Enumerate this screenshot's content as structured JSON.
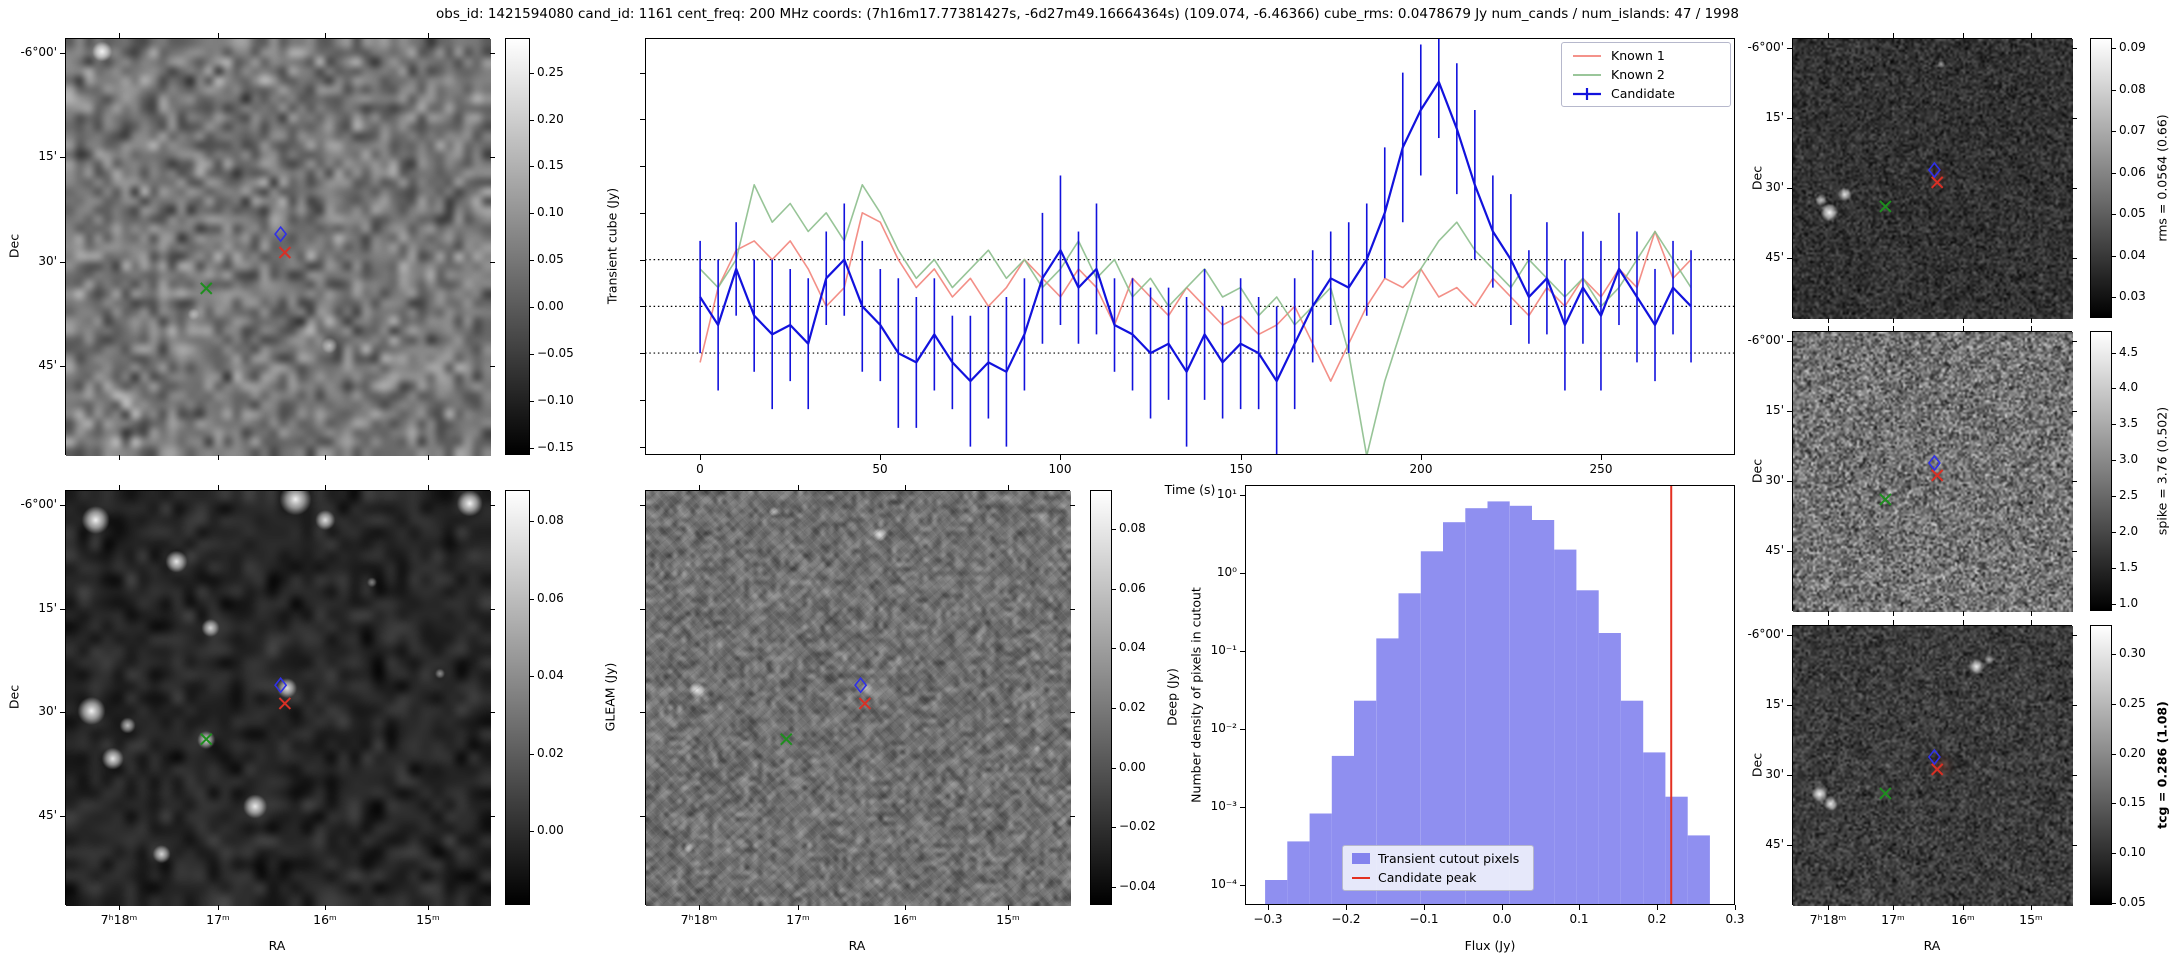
{
  "title": "obs_id: 1421594080 cand_id: 1161 cent_freq: 200 MHz coords: (7h16m17.77381427s, -6d27m49.16664364s) (109.074, -6.46366) cube_rms: 0.0478679 Jy num_cands / num_islands: 47 / 1998",
  "axes": {
    "dec_label": "Dec",
    "ra_label": "RA",
    "dec_ticks": [
      "-6°00'",
      "15'",
      "30'",
      "45'"
    ],
    "ra_ticks": [
      "7ʰ18ᵐ",
      "17ᵐ",
      "16ᵐ",
      "15ᵐ"
    ]
  },
  "marker_colors": {
    "candidate": "#3030e8",
    "peak": "#d83025",
    "known": "#1e8e1e"
  },
  "colorbars": {
    "transient": {
      "label": "",
      "vmin": -0.158,
      "vmax": 0.287,
      "tick_values": [
        0.25,
        0.2,
        0.15,
        0.1,
        0.05,
        0.0,
        -0.05,
        -0.1,
        -0.15
      ],
      "tick_labels": [
        "0.25",
        "0.20",
        "0.15",
        "0.10",
        "0.05",
        "0.00",
        "−0.05",
        "−0.10",
        "−0.15"
      ]
    },
    "gleam": {
      "label": "GLEAM (Jy)",
      "vmin": -0.019,
      "vmax": 0.088,
      "tick_values": [
        0.08,
        0.06,
        0.04,
        0.02,
        0.0
      ],
      "tick_labels": [
        "0.08",
        "0.06",
        "0.04",
        "0.02",
        "0.00"
      ]
    },
    "deep": {
      "label": "Deep (Jy)",
      "vmin": -0.046,
      "vmax": 0.093,
      "tick_values": [
        0.08,
        0.06,
        0.04,
        0.02,
        0.0,
        -0.02,
        -0.04
      ],
      "tick_labels": [
        "0.08",
        "0.06",
        "0.04",
        "0.02",
        "0.00",
        "−0.02",
        "−0.04"
      ]
    },
    "rms": {
      "label": "rms = 0.0564 (0.66)",
      "vmin": 0.025,
      "vmax": 0.0925,
      "tick_values": [
        0.09,
        0.08,
        0.07,
        0.06,
        0.05,
        0.04,
        0.03
      ],
      "tick_labels": [
        "0.09",
        "0.08",
        "0.07",
        "0.06",
        "0.05",
        "0.04",
        "0.03"
      ]
    },
    "spike": {
      "label": "spike = 3.76 (0.502)",
      "vmin": 0.9,
      "vmax": 4.8,
      "tick_values": [
        4.5,
        4.0,
        3.5,
        3.0,
        2.5,
        2.0,
        1.5,
        1.0
      ],
      "tick_labels": [
        "4.5",
        "4.0",
        "3.5",
        "3.0",
        "2.5",
        "2.0",
        "1.5",
        "1.0"
      ]
    },
    "tcg": {
      "label": "tcg = 0.286 (1.08)",
      "bold": true,
      "vmin": 0.048,
      "vmax": 0.329,
      "tick_values": [
        0.3,
        0.25,
        0.2,
        0.15,
        0.1,
        0.05
      ],
      "tick_labels": [
        "0.30",
        "0.25",
        "0.20",
        "0.15",
        "0.10",
        "0.05"
      ]
    }
  },
  "chart_data": [
    {
      "type": "line",
      "xlabel": "Time (s)",
      "ylabel": "Transient cube (Jy)",
      "xlim": [
        -15.3,
        287.2
      ],
      "ylim": [
        -0.159,
        0.287
      ],
      "xticks": [
        0,
        50,
        100,
        150,
        200,
        250
      ],
      "hlines": [
        0.05,
        0.0,
        -0.05
      ],
      "left_tick_values": [
        0.25,
        0.2,
        0.15,
        0.1,
        0.05,
        0.0,
        -0.05,
        -0.1,
        -0.15
      ],
      "x": [
        0,
        5,
        10,
        15,
        20,
        25,
        30,
        35,
        40,
        45,
        50,
        55,
        60,
        65,
        70,
        75,
        80,
        85,
        90,
        95,
        100,
        105,
        110,
        115,
        120,
        125,
        130,
        135,
        140,
        145,
        150,
        155,
        160,
        165,
        170,
        175,
        180,
        185,
        190,
        195,
        200,
        205,
        210,
        215,
        220,
        225,
        230,
        235,
        240,
        245,
        250,
        255,
        260,
        265,
        270,
        275
      ],
      "series": [
        {
          "name": "Known 1",
          "color": "#f2837a",
          "values": [
            -0.06,
            0.02,
            0.06,
            0.07,
            0.05,
            0.07,
            0.04,
            0.0,
            0.02,
            0.1,
            0.09,
            0.05,
            0.02,
            0.04,
            0.01,
            0.03,
            0.0,
            0.02,
            0.05,
            0.03,
            0.01,
            0.04,
            0.02,
            -0.02,
            0.03,
            0.01,
            -0.01,
            0.02,
            0.0,
            -0.02,
            -0.01,
            -0.03,
            -0.02,
            0.0,
            -0.04,
            -0.08,
            -0.04,
            0.0,
            0.03,
            0.02,
            0.04,
            0.01,
            0.02,
            0.0,
            0.03,
            0.01,
            -0.01,
            0.02,
            0.0,
            0.03,
            0.01,
            0.04,
            0.02,
            0.08,
            0.03,
            0.05
          ]
        },
        {
          "name": "Known 2",
          "color": "#8cbe8c",
          "values": [
            0.04,
            0.02,
            0.05,
            0.13,
            0.09,
            0.11,
            0.08,
            0.1,
            0.07,
            0.13,
            0.1,
            0.06,
            0.03,
            0.05,
            0.02,
            0.04,
            0.06,
            0.03,
            0.05,
            0.02,
            0.04,
            0.07,
            0.03,
            0.05,
            0.01,
            0.03,
            0.0,
            0.02,
            0.04,
            0.01,
            0.02,
            -0.01,
            0.01,
            -0.02,
            0.0,
            0.02,
            -0.05,
            -0.16,
            -0.08,
            -0.02,
            0.04,
            0.07,
            0.09,
            0.06,
            0.04,
            0.02,
            0.05,
            0.03,
            0.01,
            0.03,
            0.0,
            0.02,
            0.05,
            0.08,
            0.05,
            0.02
          ]
        },
        {
          "name": "Candidate",
          "color": "#1212dd",
          "values": [
            0.01,
            -0.02,
            0.04,
            -0.01,
            -0.03,
            -0.02,
            -0.04,
            0.03,
            0.05,
            0.0,
            -0.02,
            -0.05,
            -0.06,
            -0.03,
            -0.06,
            -0.08,
            -0.06,
            -0.07,
            -0.03,
            0.03,
            0.06,
            0.02,
            0.04,
            -0.02,
            -0.03,
            -0.05,
            -0.04,
            -0.07,
            -0.03,
            -0.06,
            -0.04,
            -0.05,
            -0.08,
            -0.04,
            0.0,
            0.03,
            0.02,
            0.05,
            0.1,
            0.17,
            0.21,
            0.24,
            0.19,
            0.13,
            0.08,
            0.05,
            0.01,
            0.03,
            -0.02,
            0.02,
            -0.01,
            0.04,
            0.01,
            -0.02,
            0.02,
            0.0
          ],
          "errors": [
            0.06,
            0.07,
            0.05,
            0.06,
            0.08,
            0.06,
            0.07,
            0.05,
            0.06,
            0.07,
            0.06,
            0.08,
            0.07,
            0.06,
            0.05,
            0.07,
            0.06,
            0.08,
            0.06,
            0.07,
            0.08,
            0.06,
            0.07,
            0.05,
            0.06,
            0.07,
            0.06,
            0.08,
            0.07,
            0.06,
            0.07,
            0.06,
            0.08,
            0.07,
            0.06,
            0.05,
            0.07,
            0.06,
            0.07,
            0.08,
            0.07,
            0.06,
            0.07,
            0.08,
            0.06,
            0.07,
            0.05,
            0.06,
            0.07,
            0.06,
            0.08,
            0.06,
            0.07,
            0.06,
            0.05,
            0.06
          ]
        }
      ],
      "legend_position": "upper right"
    },
    {
      "type": "bar",
      "xlabel": "Flux (Jy)",
      "ylabel": "Number density of pixels in cutout",
      "bin_start": -0.3042,
      "bin_width": 0.0286,
      "values": [
        0.000115,
        0.00036,
        0.00082,
        0.0045,
        0.023,
        0.145,
        0.55,
        1.9,
        4.5,
        6.8,
        8.3,
        7.3,
        4.8,
        2.0,
        0.6,
        0.17,
        0.023,
        0.005,
        0.00135,
        0.00043
      ],
      "candidate_peak": 0.218,
      "xlim": [
        -0.33,
        0.3
      ],
      "ylim_log": [
        -4.26,
        1.13
      ],
      "xtick_values": [
        -0.3,
        -0.2,
        -0.1,
        0.0,
        0.1,
        0.2,
        0.3
      ],
      "xtick_labels": [
        "−0.3",
        "−0.2",
        "−0.1",
        "0.0",
        "0.1",
        "0.2",
        "0.3"
      ],
      "ytick_exp": [
        1,
        0,
        -1,
        -2,
        -3,
        -4
      ],
      "ytick_labels": [
        "10¹",
        "10⁰",
        "10⁻¹",
        "10⁻²",
        "10⁻³",
        "10⁻⁴"
      ],
      "bar_color": "#8383ee",
      "line_color": "#e33021",
      "legend": [
        {
          "label": "Transient cutout pixels",
          "swatch": "patch"
        },
        {
          "label": "Candidate peak",
          "swatch": "line"
        }
      ]
    }
  ]
}
